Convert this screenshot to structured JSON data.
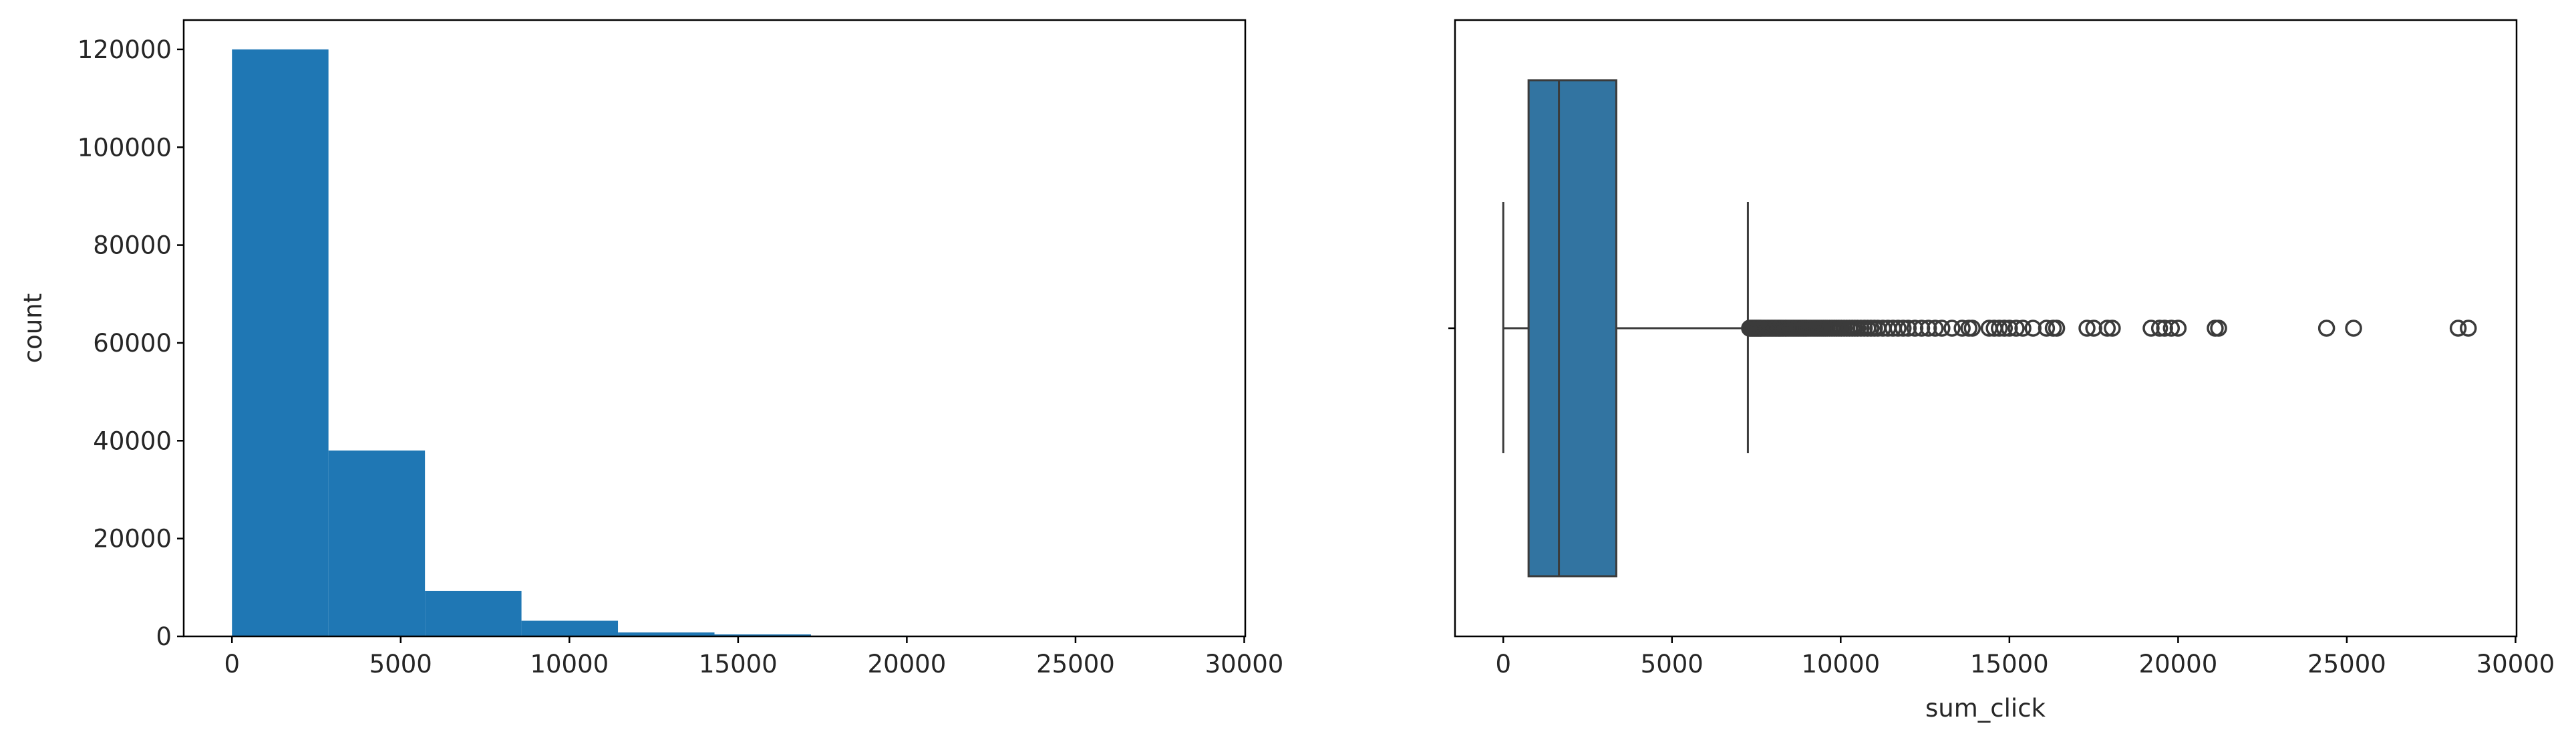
{
  "chart_data": [
    {
      "type": "bar",
      "subtype": "histogram",
      "title": "",
      "xlabel": "",
      "ylabel": "count",
      "bin_edges": [
        0,
        2860,
        5720,
        8580,
        11440,
        14300,
        17160,
        20020,
        22880,
        25740,
        28600
      ],
      "values": [
        120000,
        38000,
        9300,
        3200,
        800,
        400,
        150,
        60,
        30,
        20
      ],
      "xlim": [
        -1430,
        30030
      ],
      "ylim": [
        0,
        126000
      ],
      "xticks": [
        0,
        5000,
        10000,
        15000,
        20000,
        25000,
        30000
      ],
      "yticks": [
        0,
        20000,
        40000,
        60000,
        80000,
        100000,
        120000
      ],
      "grid": false,
      "color": "#1f77b4"
    },
    {
      "type": "box",
      "title": "",
      "xlabel": "sum_click",
      "ylabel": "",
      "orientation": "horizontal",
      "whisker_low": 0,
      "q1": 750,
      "median": 1650,
      "q3": 3350,
      "whisker_high": 7250,
      "outliers": [
        7300,
        7330,
        7360,
        7390,
        7420,
        7450,
        7480,
        7510,
        7540,
        7570,
        7600,
        7630,
        7660,
        7700,
        7740,
        7780,
        7820,
        7860,
        7900,
        7940,
        7980,
        8020,
        8060,
        8100,
        8140,
        8180,
        8220,
        8260,
        8300,
        8350,
        8400,
        8450,
        8500,
        8550,
        8600,
        8650,
        8700,
        8750,
        8800,
        8850,
        8900,
        8950,
        9000,
        9060,
        9120,
        9180,
        9240,
        9300,
        9360,
        9420,
        9480,
        9540,
        9600,
        9670,
        9740,
        9810,
        9880,
        9950,
        10020,
        10100,
        10180,
        10260,
        10340,
        10420,
        10500,
        10600,
        10700,
        10800,
        10900,
        11000,
        11100,
        11250,
        11400,
        11550,
        11700,
        11850,
        12000,
        12200,
        12400,
        12600,
        12800,
        13000,
        13300,
        13600,
        13800,
        13900,
        14400,
        14550,
        14700,
        14850,
        15000,
        15200,
        15400,
        15700,
        16100,
        16300,
        16400,
        17300,
        17500,
        17900,
        18050,
        19200,
        19450,
        19600,
        19800,
        20000,
        21100,
        21200,
        24400,
        25200,
        28300,
        28600
      ],
      "xlim": [
        -1430,
        30030
      ],
      "xticks": [
        0,
        5000,
        10000,
        15000,
        20000,
        25000,
        30000
      ],
      "grid": false,
      "color": "#3274a1"
    }
  ]
}
